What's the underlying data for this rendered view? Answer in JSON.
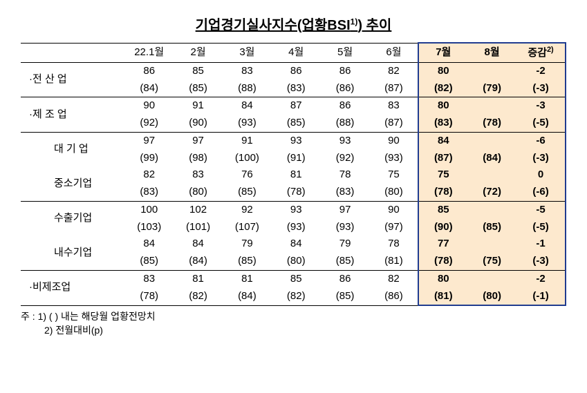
{
  "title_prefix": "기업경기실사지수(업황BSI",
  "title_sup": "1)",
  "title_suffix": ") 추이",
  "columns": [
    "22.1월",
    "2월",
    "3월",
    "4월",
    "5월",
    "6월",
    "7월",
    "8월",
    "증감"
  ],
  "col_sup_last": "2)",
  "rows": [
    {
      "label": "·전 산 업",
      "indent": 1,
      "section_top": true,
      "top": [
        "86",
        "85",
        "83",
        "86",
        "86",
        "82",
        "80",
        "",
        "-2"
      ],
      "bot": [
        "(84)",
        "(85)",
        "(88)",
        "(83)",
        "(86)",
        "(87)",
        "(82)",
        "(79)",
        "(-3)"
      ]
    },
    {
      "label": "·제 조 업",
      "indent": 1,
      "section_top": true,
      "top": [
        "90",
        "91",
        "84",
        "87",
        "86",
        "83",
        "80",
        "",
        "-3"
      ],
      "bot": [
        "(92)",
        "(90)",
        "(93)",
        "(85)",
        "(88)",
        "(87)",
        "(83)",
        "(78)",
        "(-5)"
      ]
    },
    {
      "label": "대 기 업",
      "indent": 2,
      "section_top": true,
      "top": [
        "97",
        "97",
        "91",
        "93",
        "93",
        "90",
        "84",
        "",
        "-6"
      ],
      "bot": [
        "(99)",
        "(98)",
        "(100)",
        "(91)",
        "(92)",
        "(93)",
        "(87)",
        "(84)",
        "(-3)"
      ]
    },
    {
      "label": "중소기업",
      "indent": 2,
      "section_top": false,
      "top": [
        "82",
        "83",
        "76",
        "81",
        "78",
        "75",
        "75",
        "",
        "0"
      ],
      "bot": [
        "(83)",
        "(80)",
        "(85)",
        "(78)",
        "(83)",
        "(80)",
        "(78)",
        "(72)",
        "(-6)"
      ]
    },
    {
      "label": "수출기업",
      "indent": 2,
      "section_top": true,
      "top": [
        "100",
        "102",
        "92",
        "93",
        "97",
        "90",
        "85",
        "",
        "-5"
      ],
      "bot": [
        "(103)",
        "(101)",
        "(107)",
        "(93)",
        "(93)",
        "(97)",
        "(90)",
        "(85)",
        "(-5)"
      ]
    },
    {
      "label": "내수기업",
      "indent": 2,
      "section_top": false,
      "top": [
        "84",
        "84",
        "79",
        "84",
        "79",
        "78",
        "77",
        "",
        "-1"
      ],
      "bot": [
        "(85)",
        "(84)",
        "(85)",
        "(80)",
        "(85)",
        "(81)",
        "(78)",
        "(75)",
        "(-3)"
      ]
    },
    {
      "label": "·비제조업",
      "indent": 1,
      "section_top": true,
      "top": [
        "83",
        "81",
        "81",
        "85",
        "86",
        "82",
        "80",
        "",
        "-2"
      ],
      "bot": [
        "(78)",
        "(82)",
        "(84)",
        "(82)",
        "(85)",
        "(86)",
        "(81)",
        "(80)",
        "(-1)"
      ]
    }
  ],
  "footnote_prefix": "주 : ",
  "footnote1": "1) (   ) 내는 해당월 업황전망치",
  "footnote2": "2) 전월대비(p)",
  "colors": {
    "highlight_bg": "#fde9ce",
    "highlight_border": "#1f3b8f",
    "text": "#000000",
    "background": "#ffffff"
  },
  "type": "table"
}
